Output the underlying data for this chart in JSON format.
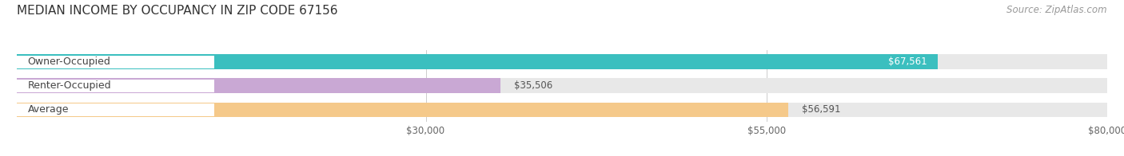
{
  "title": "MEDIAN INCOME BY OCCUPANCY IN ZIP CODE 67156",
  "source": "Source: ZipAtlas.com",
  "categories": [
    "Owner-Occupied",
    "Renter-Occupied",
    "Average"
  ],
  "values": [
    67561,
    35506,
    56591
  ],
  "bar_colors": [
    "#3bbfbf",
    "#c9a8d4",
    "#f5c98a"
  ],
  "value_labels": [
    "$67,561",
    "$35,506",
    "$56,591"
  ],
  "label_inside": [
    true,
    false,
    false
  ],
  "xlim": [
    0,
    80000
  ],
  "xticks": [
    30000,
    55000,
    80000
  ],
  "xtick_labels": [
    "$30,000",
    "$55,000",
    "$80,000"
  ],
  "bg_bar_color": "#e8e8e8",
  "title_fontsize": 11,
  "source_fontsize": 8.5,
  "label_fontsize": 9,
  "value_fontsize": 8.5,
  "tick_fontsize": 8.5,
  "bar_height": 0.62,
  "background_color": "#ffffff"
}
